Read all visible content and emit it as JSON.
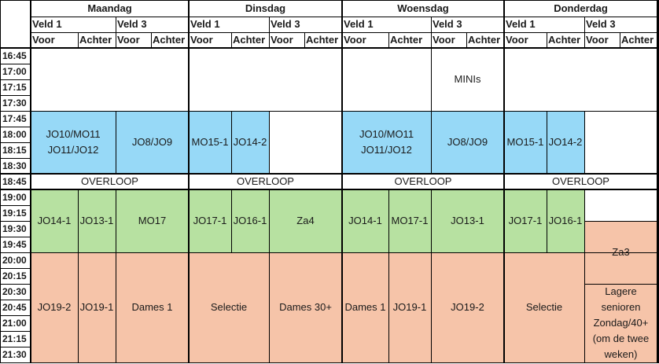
{
  "days": [
    "Maandag",
    "Dinsdag",
    "Woensdag",
    "Donderdag"
  ],
  "fields": {
    "veld1": "Veld 1",
    "veld3": "Veld 3"
  },
  "sides": {
    "voor": "Voor",
    "achter": "Achter"
  },
  "times": [
    "16:45",
    "17:00",
    "17:15",
    "17:30",
    "17:45",
    "18:00",
    "18:15",
    "18:30",
    "18:45",
    "19:00",
    "19:15",
    "19:30",
    "19:45",
    "20:00",
    "20:15",
    "20:30",
    "20:45",
    "21:00",
    "21:15",
    "21:30"
  ],
  "overloop_label": "OVERLOOP",
  "colors": {
    "blue": "#97d9f7",
    "green": "#b7e1a1",
    "orange": "#f6c4a9"
  },
  "blocks": [
    {
      "id": "mon-jo10",
      "day": 0,
      "cols": [
        0,
        1
      ],
      "start": 4,
      "end": 8,
      "color": "blue",
      "lines": [
        "JO10/MO11",
        "JO11/JO12"
      ]
    },
    {
      "id": "mon-jo8",
      "day": 0,
      "cols": [
        2,
        3
      ],
      "start": 4,
      "end": 8,
      "color": "blue",
      "lines": [
        "JO8/JO9"
      ]
    },
    {
      "id": "mon-jo14-1",
      "day": 0,
      "cols": [
        0,
        0
      ],
      "start": 9,
      "end": 13,
      "color": "green",
      "lines": [
        "JO14-1"
      ]
    },
    {
      "id": "mon-jo13-1",
      "day": 0,
      "cols": [
        1,
        1
      ],
      "start": 9,
      "end": 13,
      "color": "green",
      "lines": [
        "JO13-1"
      ]
    },
    {
      "id": "mon-mo17",
      "day": 0,
      "cols": [
        2,
        3
      ],
      "start": 9,
      "end": 13,
      "color": "green",
      "lines": [
        "MO17"
      ]
    },
    {
      "id": "mon-jo19-2",
      "day": 0,
      "cols": [
        0,
        0
      ],
      "start": 13,
      "end": 20,
      "color": "orange",
      "lines": [
        "JO19-2"
      ]
    },
    {
      "id": "mon-jo19-1",
      "day": 0,
      "cols": [
        1,
        1
      ],
      "start": 13,
      "end": 20,
      "color": "orange",
      "lines": [
        "JO19-1"
      ]
    },
    {
      "id": "mon-dames1",
      "day": 0,
      "cols": [
        2,
        3
      ],
      "start": 13,
      "end": 20,
      "color": "orange",
      "lines": [
        "Dames 1"
      ]
    },
    {
      "id": "tue-mo15",
      "day": 1,
      "cols": [
        0,
        0
      ],
      "start": 4,
      "end": 8,
      "color": "blue",
      "lines": [
        "MO15-1"
      ]
    },
    {
      "id": "tue-jo14-2",
      "day": 1,
      "cols": [
        1,
        1
      ],
      "start": 4,
      "end": 8,
      "color": "blue",
      "lines": [
        "JO14-2"
      ]
    },
    {
      "id": "tue-jo17-1",
      "day": 1,
      "cols": [
        0,
        0
      ],
      "start": 9,
      "end": 13,
      "color": "green",
      "lines": [
        "JO17-1"
      ]
    },
    {
      "id": "tue-jo16-1",
      "day": 1,
      "cols": [
        1,
        1
      ],
      "start": 9,
      "end": 13,
      "color": "green",
      "lines": [
        "JO16-1"
      ]
    },
    {
      "id": "tue-za4",
      "day": 1,
      "cols": [
        2,
        3
      ],
      "start": 9,
      "end": 13,
      "color": "green",
      "lines": [
        "Za4"
      ]
    },
    {
      "id": "tue-selectie",
      "day": 1,
      "cols": [
        0,
        1
      ],
      "start": 13,
      "end": 20,
      "color": "orange",
      "lines": [
        "Selectie"
      ]
    },
    {
      "id": "tue-dames30",
      "day": 1,
      "cols": [
        2,
        3
      ],
      "start": 13,
      "end": 20,
      "color": "orange",
      "lines": [
        "Dames 30+"
      ]
    },
    {
      "id": "wed-minis",
      "day": 2,
      "cols": [
        2,
        3
      ],
      "start": 0,
      "end": 4,
      "color": "white",
      "lines": [
        "MINIs"
      ]
    },
    {
      "id": "wed-jo10",
      "day": 2,
      "cols": [
        0,
        1
      ],
      "start": 4,
      "end": 8,
      "color": "blue",
      "lines": [
        "JO10/MO11",
        "JO11/JO12"
      ]
    },
    {
      "id": "wed-jo8",
      "day": 2,
      "cols": [
        2,
        3
      ],
      "start": 4,
      "end": 8,
      "color": "blue",
      "lines": [
        "JO8/JO9"
      ]
    },
    {
      "id": "wed-jo14-1",
      "day": 2,
      "cols": [
        0,
        0
      ],
      "start": 9,
      "end": 13,
      "color": "green",
      "lines": [
        "JO14-1"
      ]
    },
    {
      "id": "wed-mo17-1",
      "day": 2,
      "cols": [
        1,
        1
      ],
      "start": 9,
      "end": 13,
      "color": "green",
      "lines": [
        "MO17-1"
      ]
    },
    {
      "id": "wed-jo13-1",
      "day": 2,
      "cols": [
        2,
        3
      ],
      "start": 9,
      "end": 13,
      "color": "green",
      "lines": [
        "JO13-1"
      ]
    },
    {
      "id": "wed-dames1",
      "day": 2,
      "cols": [
        0,
        0
      ],
      "start": 13,
      "end": 20,
      "color": "orange",
      "lines": [
        "Dames 1"
      ]
    },
    {
      "id": "wed-jo19-1",
      "day": 2,
      "cols": [
        1,
        1
      ],
      "start": 13,
      "end": 20,
      "color": "orange",
      "lines": [
        "JO19-1"
      ]
    },
    {
      "id": "wed-jo19-2",
      "day": 2,
      "cols": [
        2,
        3
      ],
      "start": 13,
      "end": 20,
      "color": "orange",
      "lines": [
        "JO19-2"
      ]
    },
    {
      "id": "thu-mo15",
      "day": 3,
      "cols": [
        0,
        0
      ],
      "start": 4,
      "end": 8,
      "color": "blue",
      "lines": [
        "MO15-1"
      ]
    },
    {
      "id": "thu-jo14-2",
      "day": 3,
      "cols": [
        1,
        1
      ],
      "start": 4,
      "end": 8,
      "color": "blue",
      "lines": [
        "JO14-2"
      ]
    },
    {
      "id": "thu-jo17-1",
      "day": 3,
      "cols": [
        0,
        0
      ],
      "start": 9,
      "end": 13,
      "color": "green",
      "lines": [
        "JO17-1"
      ]
    },
    {
      "id": "thu-jo16-1",
      "day": 3,
      "cols": [
        1,
        1
      ],
      "start": 9,
      "end": 13,
      "color": "green",
      "lines": [
        "JO16-1"
      ]
    },
    {
      "id": "thu-selectie",
      "day": 3,
      "cols": [
        0,
        1
      ],
      "start": 13,
      "end": 20,
      "color": "orange",
      "lines": [
        "Selectie"
      ]
    },
    {
      "id": "thu-za3",
      "day": 3,
      "cols": [
        2,
        3
      ],
      "start": 11,
      "end": 15,
      "color": "orange",
      "lines": [
        "Za3"
      ]
    },
    {
      "id": "thu-lagere",
      "day": 3,
      "cols": [
        2,
        3
      ],
      "start": 15,
      "end": 20,
      "color": "orange",
      "lines": [
        "Lagere",
        "senioren",
        "Zondag/40+",
        "(om de twee",
        "weken)"
      ]
    }
  ]
}
